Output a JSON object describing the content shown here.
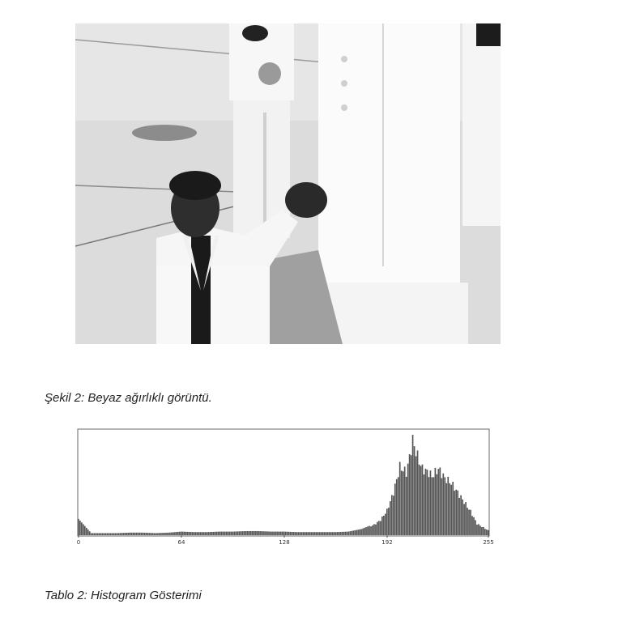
{
  "figure": {
    "caption": "Şekil 2: Beyaz ağırlıklı görüntü."
  },
  "table": {
    "caption": "Tablo 2: Histogram Gösterimi"
  },
  "chart_data": {
    "type": "bar",
    "title": "",
    "xlabel": "",
    "ylabel": "",
    "xlim": [
      0,
      255
    ],
    "xticks": [
      0,
      64,
      128,
      192,
      255
    ],
    "grid": false,
    "legend": "none",
    "bar_color": "#555555",
    "x": [
      0,
      8,
      16,
      24,
      32,
      40,
      48,
      56,
      64,
      72,
      80,
      88,
      96,
      104,
      112,
      120,
      128,
      136,
      144,
      152,
      160,
      168,
      176,
      184,
      188,
      192,
      196,
      200,
      204,
      206,
      208,
      210,
      212,
      214,
      216,
      218,
      220,
      224,
      228,
      232,
      236,
      240,
      244,
      248,
      252,
      255
    ],
    "values": [
      0.16,
      0.02,
      0.02,
      0.02,
      0.025,
      0.025,
      0.02,
      0.025,
      0.035,
      0.03,
      0.03,
      0.035,
      0.035,
      0.04,
      0.04,
      0.035,
      0.035,
      0.03,
      0.03,
      0.03,
      0.03,
      0.035,
      0.06,
      0.11,
      0.16,
      0.26,
      0.45,
      0.72,
      0.66,
      0.82,
      1.0,
      0.88,
      0.78,
      0.7,
      0.68,
      0.66,
      0.62,
      0.7,
      0.6,
      0.55,
      0.45,
      0.35,
      0.25,
      0.12,
      0.08,
      0.05
    ]
  }
}
